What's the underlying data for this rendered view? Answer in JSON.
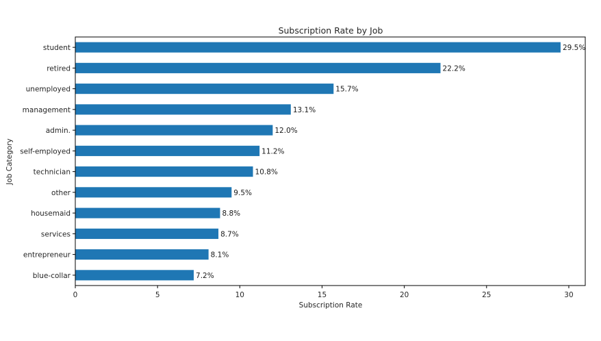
{
  "chart_data": {
    "type": "bar",
    "orientation": "horizontal",
    "title": "Subscription Rate by Job",
    "xlabel": "Subscription Rate",
    "ylabel": "Job Category",
    "xlim": [
      0,
      31
    ],
    "xticks": [
      0,
      5,
      10,
      15,
      20,
      25,
      30
    ],
    "grid": false,
    "bar_color": "#1f77b4",
    "categories": [
      "student",
      "retired",
      "unemployed",
      "management",
      "admin.",
      "self-employed",
      "technician",
      "other",
      "housemaid",
      "services",
      "entrepreneur",
      "blue-collar"
    ],
    "values": [
      29.5,
      22.2,
      15.7,
      13.1,
      12.0,
      11.2,
      10.8,
      9.5,
      8.8,
      8.7,
      8.1,
      7.2
    ],
    "data_labels": [
      "29.5%",
      "22.2%",
      "15.7%",
      "13.1%",
      "12.0%",
      "11.2%",
      "10.8%",
      "9.5%",
      "8.8%",
      "8.7%",
      "8.1%",
      "7.2%"
    ]
  }
}
